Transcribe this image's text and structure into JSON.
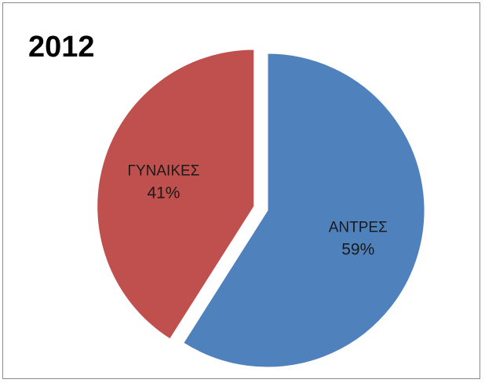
{
  "chart_data": {
    "type": "pie",
    "title": "2012",
    "slices": [
      {
        "label": "ΑΝΤΡΕΣ",
        "value": 59,
        "percent_label": "59%",
        "color": "#4f81bd",
        "exploded": false
      },
      {
        "label": "ΓΥΝΑΙΚΕΣ",
        "value": 41,
        "percent_label": "41%",
        "color": "#c0504d",
        "exploded": true
      }
    ],
    "start_position": "12 o'clock",
    "direction": "clockwise",
    "legend": "none"
  }
}
